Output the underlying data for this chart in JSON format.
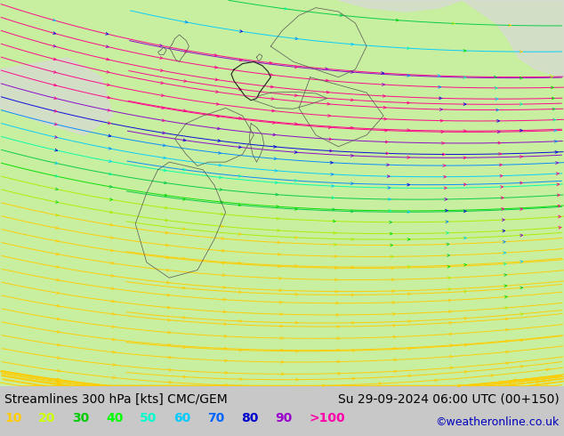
{
  "title_left": "Streamlines 300 hPa [kts] CMC/GEM",
  "title_right": "Su 29-09-2024 06:00 UTC (00+150)",
  "watermark": "©weatheronline.co.uk",
  "legend_values": [
    "10",
    "20",
    "30",
    "40",
    "50",
    "60",
    "70",
    "80",
    "90",
    ">100"
  ],
  "legend_colors": [
    "#ffcc00",
    "#ccff00",
    "#00cc00",
    "#00ff00",
    "#00ffcc",
    "#00ccff",
    "#0066ff",
    "#0000cc",
    "#9900cc",
    "#ff00aa"
  ],
  "background_color": "#c8c8c8",
  "map_bg_color": "#c8eea0",
  "land_gray_color": "#d8d8d8",
  "border_color": "#555555",
  "title_fontsize": 10,
  "legend_fontsize": 10,
  "watermark_color": "#0000bb",
  "title_color": "#000000"
}
